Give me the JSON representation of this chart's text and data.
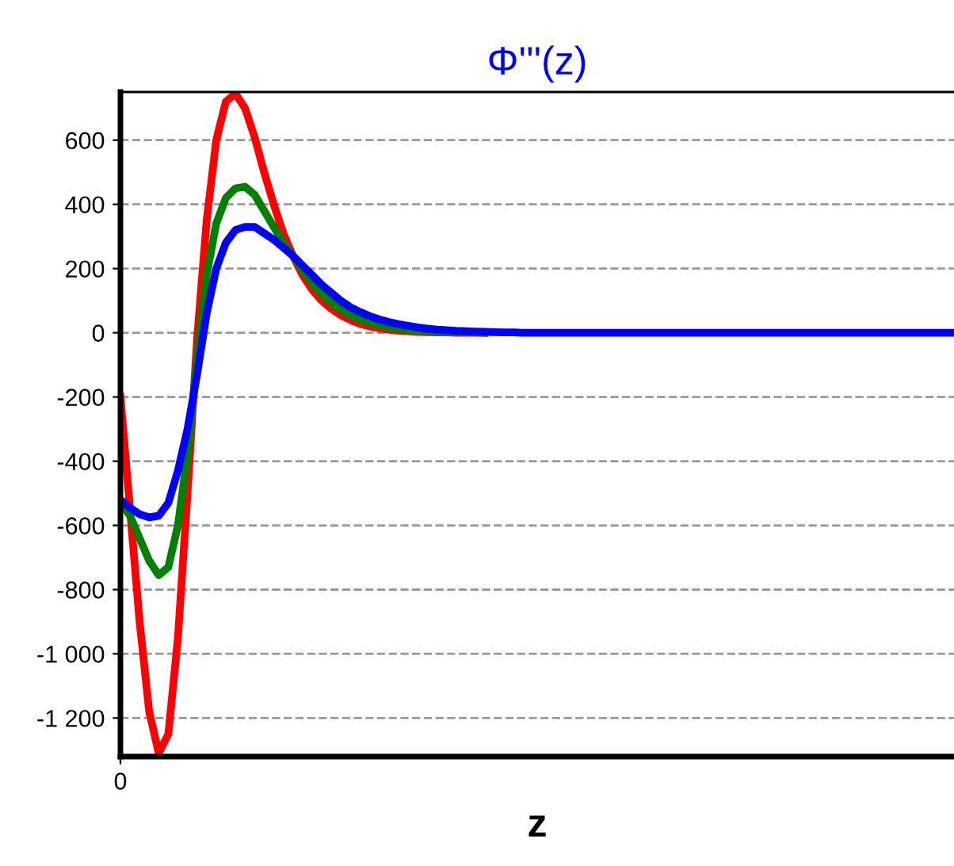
{
  "chart_data": {
    "type": "line",
    "title": "Φ'''(z)",
    "xlabel": "z",
    "categories": [
      "0",
      null,
      null,
      null,
      null,
      null,
      null,
      null,
      null,
      null,
      null,
      null,
      null,
      null,
      null,
      null,
      null,
      null,
      null,
      null,
      null,
      null,
      null,
      null,
      null,
      null,
      null,
      null,
      null,
      null,
      null,
      null,
      null,
      null,
      null,
      null,
      null,
      null,
      null,
      null,
      null,
      null,
      null,
      null,
      null,
      null,
      null,
      null,
      null,
      null,
      null,
      null,
      null,
      null,
      null,
      null,
      null,
      null,
      null,
      null,
      null,
      null,
      null,
      null,
      null,
      null,
      null,
      null,
      null,
      null,
      null,
      null,
      null,
      null,
      null,
      null,
      null,
      null,
      null,
      null,
      null,
      null,
      null,
      null,
      null,
      null,
      null,
      null
    ],
    "series": [
      {
        "color": "#ff0000",
        "values": [
          -200,
          -550,
          -900,
          -1180,
          -1310,
          -1250,
          -950,
          -500,
          -20,
          350,
          600,
          720,
          745,
          700,
          610,
          500,
          400,
          310,
          240,
          180,
          135,
          100,
          75,
          55,
          40,
          28,
          20,
          14,
          10,
          7,
          5,
          3,
          2,
          1,
          1,
          0,
          0,
          0,
          0,
          null,
          null,
          null,
          null,
          null,
          null,
          null,
          null,
          null,
          null,
          null,
          null,
          null,
          null,
          null,
          null,
          null,
          null,
          null,
          null,
          null,
          null,
          null,
          null,
          null,
          null,
          null,
          null,
          null,
          null,
          null,
          null,
          null,
          null,
          null,
          null,
          null,
          null,
          null,
          null,
          null,
          null,
          null,
          null,
          null,
          null,
          null,
          null,
          null
        ]
      },
      {
        "color": "#008000",
        "values": [
          -530,
          -570,
          -640,
          -710,
          -755,
          -730,
          -600,
          -380,
          -80,
          180,
          340,
          420,
          450,
          455,
          430,
          380,
          330,
          280,
          240,
          195,
          155,
          120,
          95,
          72,
          55,
          42,
          32,
          24,
          18,
          13,
          10,
          7,
          5,
          4,
          3,
          2,
          1,
          1,
          0,
          null,
          null,
          null,
          null,
          null,
          null,
          null,
          null,
          null,
          null,
          null,
          null,
          null,
          null,
          null,
          null,
          null,
          null,
          null,
          null,
          null,
          null,
          null,
          null,
          null,
          null,
          null,
          null,
          null,
          null,
          null,
          null,
          null,
          null,
          null,
          null,
          null,
          null,
          null,
          null,
          null,
          null,
          null,
          null,
          null,
          null,
          null,
          null,
          null
        ]
      },
      {
        "color": "#0000ff",
        "values": [
          -520,
          -545,
          -565,
          -575,
          -570,
          -530,
          -430,
          -300,
          -130,
          60,
          200,
          280,
          320,
          330,
          330,
          310,
          290,
          265,
          240,
          210,
          180,
          150,
          125,
          100,
          80,
          65,
          52,
          42,
          34,
          27,
          22,
          17,
          13,
          10,
          8,
          6,
          5,
          4,
          3,
          2,
          1,
          1,
          0,
          0,
          0,
          0,
          0,
          0,
          0,
          0,
          0,
          0,
          0,
          0,
          0,
          0,
          0,
          0,
          0,
          0,
          0,
          0,
          0,
          0,
          0,
          0,
          0,
          0,
          0,
          0,
          0,
          0,
          0,
          0,
          0,
          0,
          0,
          0,
          0,
          0,
          0,
          0,
          0,
          0,
          0,
          0,
          0,
          0
        ]
      }
    ],
    "ylim": [
      -1320,
      750
    ],
    "yticks": [
      {
        "value": -1200,
        "label": "-1 200"
      },
      {
        "value": -1000,
        "label": "-1 000"
      },
      {
        "value": -800,
        "label": "-800"
      },
      {
        "value": -600,
        "label": "-600"
      },
      {
        "value": -400,
        "label": "-400"
      },
      {
        "value": -200,
        "label": "-200"
      },
      0,
      200,
      400,
      600
    ],
    "grid": "y",
    "line_style": "solid",
    "marker": "none",
    "legend": false
  }
}
